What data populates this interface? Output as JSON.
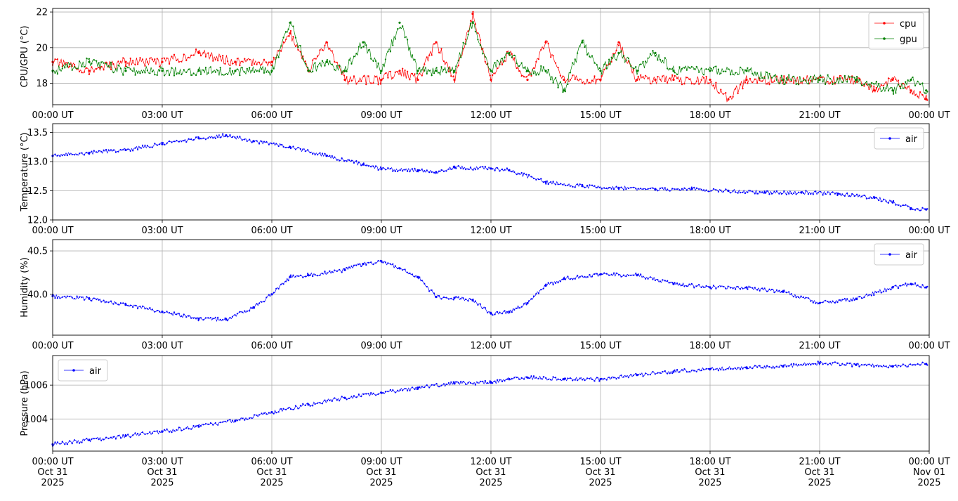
{
  "chart_data": [
    {
      "type": "line",
      "ylabel": "CPU/GPU (°C)",
      "xlim": [
        "2025-10-31T00:00",
        "2025-11-01T00:00"
      ],
      "ylim": [
        16.8,
        22.2
      ],
      "yticks": [
        18,
        20,
        22
      ],
      "ytick_labels": [
        "18",
        "20",
        "22"
      ],
      "xtick_labels": [
        "00:00 UT",
        "03:00 UT",
        "06:00 UT",
        "09:00 UT",
        "12:00 UT",
        "15:00 UT",
        "18:00 UT",
        "21:00 UT",
        "00:00 UT"
      ],
      "grid": true,
      "legend": "upper right",
      "series": [
        {
          "name": "cpu",
          "color": "#ff0000",
          "x": [
            "00:00",
            "01:00",
            "02:00",
            "03:00",
            "04:00",
            "05:00",
            "06:00",
            "06:30",
            "07:00",
            "07:30",
            "08:00",
            "09:00",
            "09:30",
            "10:00",
            "10:30",
            "11:00",
            "11:30",
            "12:00",
            "12:30",
            "13:00",
            "13:30",
            "14:00",
            "15:00",
            "15:30",
            "16:00",
            "16:30",
            "17:00",
            "18:00",
            "18:30",
            "19:00",
            "20:00",
            "21:00",
            "22:00",
            "22:30",
            "23:00",
            "23:30",
            "23:55"
          ],
          "values": [
            19.2,
            18.7,
            19.2,
            19.2,
            19.7,
            19.2,
            19.2,
            20.8,
            18.7,
            20.3,
            18.2,
            18.2,
            18.7,
            18.2,
            20.3,
            18.2,
            21.9,
            18.2,
            19.7,
            18.2,
            20.3,
            18.2,
            18.2,
            20.3,
            18.2,
            18.2,
            18.2,
            18.2,
            17.1,
            18.2,
            18.2,
            18.2,
            18.2,
            17.6,
            18.2,
            17.6,
            17.1
          ]
        },
        {
          "name": "gpu",
          "color": "#008000",
          "x": [
            "00:00",
            "01:00",
            "02:00",
            "03:00",
            "04:00",
            "05:00",
            "06:00",
            "06:30",
            "07:00",
            "07:30",
            "08:00",
            "08:30",
            "09:00",
            "09:30",
            "10:00",
            "10:30",
            "11:00",
            "11:30",
            "12:00",
            "12:30",
            "13:00",
            "13:30",
            "14:00",
            "14:30",
            "15:00",
            "15:30",
            "16:00",
            "16:30",
            "17:00",
            "18:00",
            "19:00",
            "20:00",
            "21:00",
            "22:00",
            "23:00",
            "23:30",
            "23:55"
          ],
          "values": [
            18.7,
            19.2,
            18.7,
            18.7,
            18.7,
            18.7,
            18.7,
            21.4,
            18.7,
            19.2,
            18.7,
            20.3,
            18.7,
            21.4,
            18.7,
            18.7,
            18.7,
            21.4,
            18.7,
            19.7,
            18.7,
            18.7,
            17.6,
            20.3,
            18.7,
            19.7,
            18.7,
            19.7,
            18.7,
            18.7,
            18.7,
            18.2,
            18.2,
            18.2,
            17.6,
            18.2,
            17.6
          ]
        }
      ]
    },
    {
      "type": "line",
      "ylabel": "Temperature (°C)",
      "xlim": [
        "2025-10-31T00:00",
        "2025-11-01T00:00"
      ],
      "ylim": [
        12.0,
        13.65
      ],
      "yticks": [
        12.0,
        12.5,
        13.0,
        13.5
      ],
      "ytick_labels": [
        "12.0",
        "12.5",
        "13.0",
        "13.5"
      ],
      "xtick_labels": [
        "00:00 UT",
        "03:00 UT",
        "06:00 UT",
        "09:00 UT",
        "12:00 UT",
        "15:00 UT",
        "18:00 UT",
        "21:00 UT",
        "00:00 UT"
      ],
      "grid": true,
      "legend": "upper right",
      "series": [
        {
          "name": "air",
          "color": "#0000ff",
          "x": [
            "00:00",
            "01:00",
            "02:00",
            "03:00",
            "04:00",
            "04:45",
            "05:30",
            "06:30",
            "07:30",
            "08:30",
            "09:00",
            "10:00",
            "10:30",
            "11:00",
            "12:00",
            "12:30",
            "13:30",
            "14:30",
            "15:30",
            "16:30",
            "17:30",
            "18:30",
            "19:30",
            "20:30",
            "21:30",
            "22:30",
            "23:00",
            "23:30",
            "23:55"
          ],
          "values": [
            13.1,
            13.15,
            13.2,
            13.3,
            13.4,
            13.45,
            13.35,
            13.25,
            13.1,
            12.95,
            12.87,
            12.85,
            12.82,
            12.9,
            12.88,
            12.85,
            12.65,
            12.58,
            12.55,
            12.52,
            12.53,
            12.5,
            12.47,
            12.47,
            12.45,
            12.38,
            12.3,
            12.2,
            12.18
          ]
        }
      ]
    },
    {
      "type": "line",
      "ylabel": "Humidity (%)",
      "xlim": [
        "2025-10-31T00:00",
        "2025-11-01T00:00"
      ],
      "ylim": [
        39.53,
        40.63
      ],
      "yticks": [
        40.0,
        40.5
      ],
      "ytick_labels": [
        "40.0",
        "40.5"
      ],
      "xtick_labels": [
        "00:00 UT",
        "03:00 UT",
        "06:00 UT",
        "09:00 UT",
        "12:00 UT",
        "15:00 UT",
        "18:00 UT",
        "21:00 UT",
        "00:00 UT"
      ],
      "grid": true,
      "legend": "upper right",
      "series": [
        {
          "name": "air",
          "color": "#0000ff",
          "x": [
            "00:00",
            "01:00",
            "02:00",
            "03:00",
            "04:00",
            "04:45",
            "05:30",
            "06:00",
            "06:30",
            "07:00",
            "08:00",
            "08:30",
            "09:00",
            "09:30",
            "10:00",
            "10:30",
            "11:00",
            "11:30",
            "12:00",
            "12:30",
            "13:00",
            "13:30",
            "14:00",
            "15:00",
            "16:00",
            "17:00",
            "18:00",
            "19:00",
            "20:00",
            "21:00",
            "22:00",
            "23:00",
            "23:30",
            "23:55"
          ],
          "values": [
            39.98,
            39.95,
            39.88,
            39.8,
            39.72,
            39.71,
            39.85,
            40.0,
            40.2,
            40.22,
            40.28,
            40.35,
            40.38,
            40.3,
            40.2,
            39.97,
            39.96,
            39.93,
            39.78,
            39.8,
            39.9,
            40.1,
            40.18,
            40.23,
            40.22,
            40.12,
            40.08,
            40.08,
            40.03,
            39.9,
            39.95,
            40.08,
            40.12,
            40.08
          ]
        }
      ]
    },
    {
      "type": "line",
      "ylabel": "Pressure (hPa)",
      "xlim": [
        "2025-10-31T00:00",
        "2025-11-01T00:00"
      ],
      "ylim": [
        1002.1,
        1007.75
      ],
      "yticks": [
        1004,
        1006
      ],
      "ytick_labels": [
        "1004",
        "1006"
      ],
      "xtick_labels": [
        "00:00 UT\nOct 31\n2025",
        "03:00 UT\nOct 31\n2025",
        "06:00 UT\nOct 31\n2025",
        "09:00 UT\nOct 31\n2025",
        "12:00 UT\nOct 31\n2025",
        "15:00 UT\nOct 31\n2025",
        "18:00 UT\nOct 31\n2025",
        "21:00 UT\nOct 31\n2025",
        "00:00 UT\nNov 01\n2025"
      ],
      "grid": true,
      "legend": "upper left",
      "series": [
        {
          "name": "air",
          "color": "#0000ff",
          "x": [
            "00:00",
            "01:00",
            "02:00",
            "03:00",
            "04:00",
            "05:00",
            "06:00",
            "07:00",
            "08:00",
            "09:00",
            "10:00",
            "11:00",
            "12:00",
            "12:30",
            "13:00",
            "14:00",
            "15:00",
            "16:00",
            "17:00",
            "18:00",
            "19:00",
            "20:00",
            "21:00",
            "22:00",
            "23:00",
            "23:55"
          ],
          "values": [
            1002.5,
            1002.75,
            1003.0,
            1003.25,
            1003.55,
            1003.9,
            1004.4,
            1004.85,
            1005.25,
            1005.55,
            1005.85,
            1006.1,
            1006.15,
            1006.35,
            1006.45,
            1006.35,
            1006.35,
            1006.6,
            1006.8,
            1006.95,
            1007.05,
            1007.1,
            1007.3,
            1007.2,
            1007.1,
            1007.25
          ]
        }
      ]
    }
  ]
}
